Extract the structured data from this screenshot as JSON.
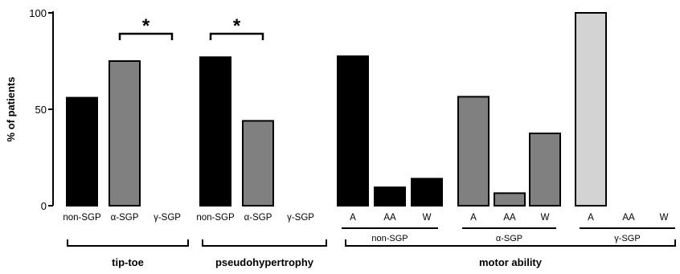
{
  "chart_data": {
    "type": "bar",
    "ylabel": "% of patients",
    "ylim": [
      0,
      100
    ],
    "yticks": [
      "0",
      "50",
      "100"
    ],
    "colors": {
      "non-SGP": "#000000",
      "α-SGP": "#808080",
      "γ-SGP": "#d3d3d3"
    },
    "groups": [
      {
        "label": "tip-toe",
        "bars": [
          {
            "category": "non-SGP",
            "value": 56,
            "color_key": "non-SGP"
          },
          {
            "category": "α-SGP",
            "value": 75,
            "color_key": "α-SGP"
          },
          {
            "category": "γ-SGP",
            "value": 0,
            "color_key": "γ-SGP"
          }
        ],
        "significance": {
          "between": [
            "α-SGP",
            "γ-SGP"
          ],
          "label": "*"
        }
      },
      {
        "label": "pseudohypertrophy",
        "bars": [
          {
            "category": "non-SGP",
            "value": 77,
            "color_key": "non-SGP"
          },
          {
            "category": "α-SGP",
            "value": 44,
            "color_key": "α-SGP"
          },
          {
            "category": "γ-SGP",
            "value": 0,
            "color_key": "γ-SGP"
          }
        ],
        "significance": {
          "between": [
            "non-SGP",
            "α-SGP"
          ],
          "label": "*"
        }
      },
      {
        "label": "motor ability",
        "subgroups": [
          {
            "label": "non-SGP",
            "color_key": "non-SGP",
            "bars": [
              {
                "category": "A",
                "value": 77.5
              },
              {
                "category": "AA",
                "value": 9.5
              },
              {
                "category": "W",
                "value": 14
              }
            ]
          },
          {
            "label": "α-SGP",
            "color_key": "α-SGP",
            "bars": [
              {
                "category": "A",
                "value": 56.5
              },
              {
                "category": "AA",
                "value": 6.5
              },
              {
                "category": "W",
                "value": 37.5
              }
            ]
          },
          {
            "label": "γ-SGP",
            "color_key": "γ-SGP",
            "bars": [
              {
                "category": "A",
                "value": 100
              },
              {
                "category": "AA",
                "value": 0
              },
              {
                "category": "W",
                "value": 0
              }
            ]
          }
        ]
      }
    ]
  }
}
